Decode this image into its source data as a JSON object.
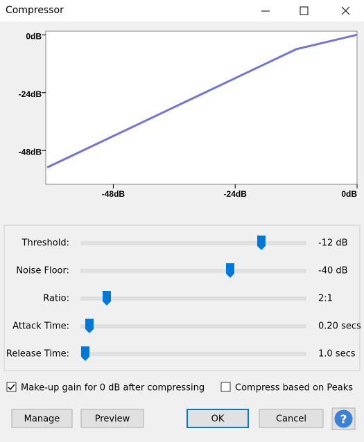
{
  "window": {
    "title": "Compressor"
  },
  "chart_data": {
    "type": "line",
    "x": [
      -61,
      -12,
      0
    ],
    "values": [
      -55,
      -6,
      0
    ],
    "color": "#7474d4",
    "xlim": [
      -61.3,
      0
    ],
    "ylim": [
      -62,
      1.5
    ],
    "xticks": [
      {
        "value": -48,
        "label": "-48dB"
      },
      {
        "value": -24,
        "label": "-24dB"
      },
      {
        "value": 0,
        "label": "0dB"
      }
    ],
    "yticks": [
      {
        "value": 0,
        "label": "0dB"
      },
      {
        "value": -24,
        "label": "-24dB"
      },
      {
        "value": -48,
        "label": "-48dB"
      }
    ]
  },
  "controls": [
    {
      "label": "Threshold:",
      "value": "-12 dB"
    },
    {
      "label": "Noise Floor:",
      "value": "-40 dB"
    },
    {
      "label": "Ratio:",
      "value": "2:1"
    },
    {
      "label": "Attack Time:",
      "value": "0.20 secs"
    },
    {
      "label": "Release Time:",
      "value": "1.0 secs"
    }
  ],
  "checkboxes": [
    {
      "label": "Make-up gain for 0 dB after compressing",
      "checked": true
    },
    {
      "label": "Compress based on Peaks",
      "checked": false
    }
  ],
  "buttons": [
    "Manage",
    "Preview",
    "OK",
    "Cancel"
  ],
  "help": "?"
}
